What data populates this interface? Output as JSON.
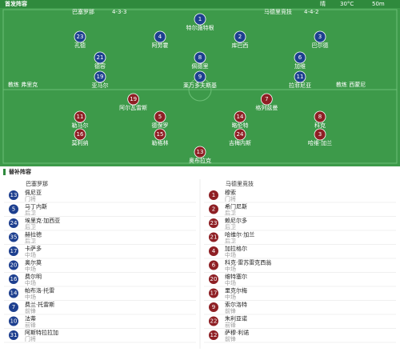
{
  "header": {
    "title": "首发阵容",
    "weather": "晴",
    "temp": "30°C",
    "wind": "50m"
  },
  "home": {
    "name": "巴塞罗那",
    "formation": "4-3-3",
    "coach": "教练 弗里克",
    "players": [
      {
        "number": "1",
        "name": "特尔施特根"
      },
      {
        "number": "23",
        "name": "孔德"
      },
      {
        "number": "4",
        "name": "阿劳霍"
      },
      {
        "number": "2",
        "name": "库巴西"
      },
      {
        "number": "3",
        "name": "巴尔德"
      },
      {
        "number": "21",
        "name": "德容"
      },
      {
        "number": "8",
        "name": "佩德里"
      },
      {
        "number": "6",
        "name": "加维"
      },
      {
        "number": "19",
        "name": "亚马尔"
      },
      {
        "number": "9",
        "name": "莱万多夫斯基"
      },
      {
        "number": "11",
        "name": "拉菲尼亚"
      }
    ]
  },
  "away": {
    "name": "马德里竞技",
    "formation": "4-4-2",
    "coach": "教练 西蒙尼",
    "players": [
      {
        "number": "13",
        "name": "奥布拉克"
      },
      {
        "number": "16",
        "name": "莫利纳"
      },
      {
        "number": "15",
        "name": "勒格林"
      },
      {
        "number": "24",
        "name": "吉梅内斯"
      },
      {
        "number": "3",
        "name": "哈维·加兰"
      },
      {
        "number": "11",
        "name": "勒马尔"
      },
      {
        "number": "5",
        "name": "德保罗"
      },
      {
        "number": "14",
        "name": "略伦特"
      },
      {
        "number": "8",
        "name": "科克"
      },
      {
        "number": "19",
        "name": "阿尔瓦雷斯"
      },
      {
        "number": "7",
        "name": "格列兹曼"
      }
    ]
  },
  "subs": {
    "title": "替补阵容",
    "home": [
      {
        "number": "13",
        "name": "佩尼亚",
        "position": "门将"
      },
      {
        "number": "5",
        "name": "马丁内斯",
        "position": "后卫"
      },
      {
        "number": "24",
        "name": "埃里克·加西亚",
        "position": "后卫"
      },
      {
        "number": "35",
        "name": "赫拉德",
        "position": "后卫"
      },
      {
        "number": "17",
        "name": "卡萨多",
        "position": "中场"
      },
      {
        "number": "20",
        "name": "奥尔莫",
        "position": "中场"
      },
      {
        "number": "16",
        "name": "费尔明",
        "position": "中场"
      },
      {
        "number": "14",
        "name": "帕布洛·托雷",
        "position": "中场"
      },
      {
        "number": "7",
        "name": "费兰·托雷斯",
        "position": "前锋"
      },
      {
        "number": "10",
        "name": "法蒂",
        "position": "前锋"
      },
      {
        "number": "31",
        "name": "阿斯特拉拉加",
        "position": "门将"
      }
    ],
    "away": [
      {
        "number": "1",
        "name": "穆索",
        "position": "门将"
      },
      {
        "number": "2",
        "name": "希门尼斯",
        "position": "后卫"
      },
      {
        "number": "23",
        "name": "赖尼尔多",
        "position": "后卫"
      },
      {
        "number": "21",
        "name": "哈维尔·加兰",
        "position": "后卫"
      },
      {
        "number": "4",
        "name": "加拉格尔",
        "position": "中场"
      },
      {
        "number": "6",
        "name": "科克·雷苏雷克西翁",
        "position": "中场"
      },
      {
        "number": "20",
        "name": "维特塞尔",
        "position": "中场"
      },
      {
        "number": "17",
        "name": "里克尔梅",
        "position": "中场"
      },
      {
        "number": "9",
        "name": "索尔洛特",
        "position": "前锋"
      },
      {
        "number": "22",
        "name": "朱利亚诺",
        "position": "前锋"
      },
      {
        "number": "12",
        "name": "萨穆·利诺",
        "position": "前锋"
      }
    ]
  }
}
